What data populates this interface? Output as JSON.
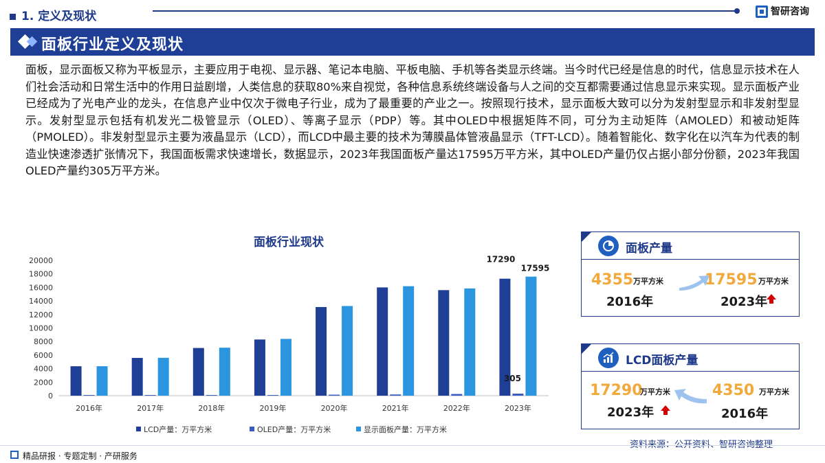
{
  "header": {
    "section_title": "1. 定义及现状",
    "brand": "智研咨询"
  },
  "banner": {
    "title": "面板行业定义及现状"
  },
  "paragraph": "面板，显示面板又称为平板显示，主要应用于电视、显示器、笔记本电脑、平板电脑、手机等各类显示终端。当今时代已经是信息的时代，信息显示技术在人们社会活动和日常生活中的作用日益剧增，人类信息的获取80%来自视觉，各种信息系统终端设备与人之间的交互都需要通过信息显示来实现。显示面板产业已经成为了光电产业的龙头，在信息产业中仅次于微电子行业，成为了最重要的产业之一。按照现行技术，显示面板大致可以分为发射型显示和非发射型显示。发射型显示包括有机发光二极管显示（OLED）、等离子显示（PDP）等。其中OLED中根据矩阵不同，可分为主动矩阵（AMOLED）和被动矩阵（PMOLED）。非发射型显示主要为液晶显示（LCD），而LCD中最主要的技术为薄膜晶体管液晶显示（TFT-LCD）。随着智能化、数字化在以汽车为代表的制造业快速渗透扩张情况下，我国面板需求快速增长，数据显示，2023年我国面板产量达17595万平方米，其中OLED产量仍仅占据小部分份额，2023年我国OLED产量约305万平方米。",
  "chart_data": {
    "type": "bar",
    "title": "面板行业现状",
    "categories": [
      "2016年",
      "2017年",
      "2018年",
      "2019年",
      "2020年",
      "2021年",
      "2022年",
      "2023年"
    ],
    "series": [
      {
        "name": "LCD产量：万平方米",
        "values": [
          4350,
          5580,
          7050,
          8300,
          13100,
          16000,
          15600,
          17290
        ],
        "color": "#1f3e96"
      },
      {
        "name": "OLED产量：万平方米",
        "values": [
          5,
          20,
          40,
          90,
          150,
          180,
          250,
          305
        ],
        "color": "#3b5bc4"
      },
      {
        "name": "显示面板产量：万平方米",
        "values": [
          4355,
          5600,
          7090,
          8390,
          13250,
          16180,
          15850,
          17595
        ],
        "color": "#2b95e0"
      }
    ],
    "data_labels": [
      {
        "series": 0,
        "index": 7,
        "text": "17290"
      },
      {
        "series": 1,
        "index": 7,
        "text": "305"
      },
      {
        "series": 2,
        "index": 7,
        "text": "17595"
      }
    ],
    "ylim": [
      0,
      20000
    ],
    "yticks": [
      0,
      2000,
      4000,
      6000,
      8000,
      10000,
      12000,
      14000,
      16000,
      18000,
      20000
    ],
    "legend_position": "bottom",
    "grid": false
  },
  "card1": {
    "title": "面板产量",
    "icon": "pie-chart-icon",
    "from_value": "4355",
    "from_unit": "万平方米",
    "from_year": "2016年",
    "to_value": "17595",
    "to_unit": "万平方米",
    "to_year": "2023年"
  },
  "card2": {
    "title": "LCD面板产量",
    "icon": "trend-chart-icon",
    "left_value": "17290",
    "left_unit": "万平方米",
    "left_year": "2023年",
    "right_value": "4350",
    "right_unit": "万平方米",
    "right_year": "2016年"
  },
  "source": "资料来源：公开资料、智研咨询整理",
  "footer": "精品研报 · 专题定制 · 产研服务",
  "colors": {
    "primary": "#1f3e96",
    "accent": "#f2a93b",
    "light_blue": "#2b95e0",
    "arrow_red": "#d40000"
  }
}
